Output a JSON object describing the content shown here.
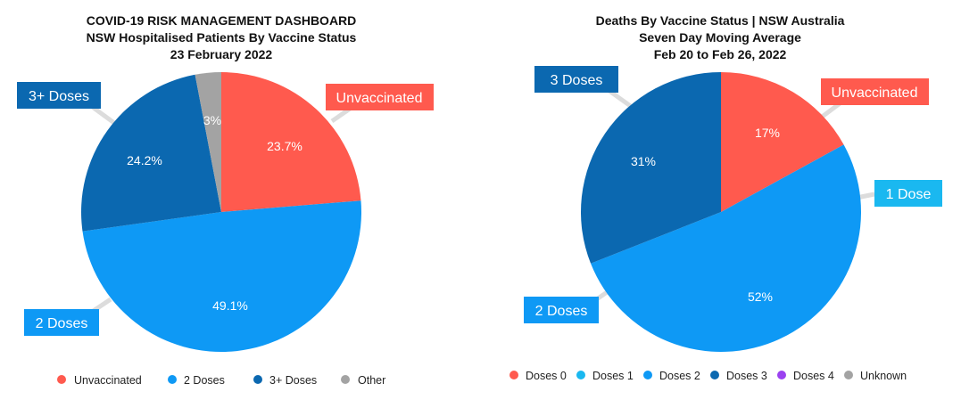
{
  "chart_data": [
    {
      "type": "pie",
      "title": [
        "COVID-19 RISK MANAGEMENT DASHBOARD",
        "NSW Hospitalised Patients By Vaccine Status",
        "23 February 2022"
      ],
      "slices": [
        {
          "name": "Unvaccinated",
          "value": 23.7,
          "label": "23.7%",
          "color": "#ff5a4e"
        },
        {
          "name": "2 Doses",
          "value": 49.1,
          "label": "49.1%",
          "color": "#0e99f5"
        },
        {
          "name": "3+ Doses",
          "value": 24.2,
          "label": "24.2%",
          "color": "#0b68b0"
        },
        {
          "name": "Other",
          "value": 3.0,
          "label": "3%",
          "color": "#a3a3a3"
        }
      ],
      "callouts": [
        {
          "text": "Unvaccinated",
          "color": "#ff5a4e"
        },
        {
          "text": "2 Doses",
          "color": "#0e99f5"
        },
        {
          "text": "3+ Doses",
          "color": "#0b68b0"
        }
      ],
      "legend": [
        {
          "name": "Unvaccinated",
          "color": "#ff5a4e"
        },
        {
          "name": "2 Doses",
          "color": "#0e99f5"
        },
        {
          "name": "3+ Doses",
          "color": "#0b68b0"
        },
        {
          "name": "Other",
          "color": "#a3a3a3"
        }
      ],
      "legend_position": "bottom"
    },
    {
      "type": "pie",
      "title": [
        "Deaths By Vaccine Status | NSW Australia",
        "Seven Day Moving Average",
        "Feb 20 to Feb 26, 2022"
      ],
      "slices": [
        {
          "name": "Doses 0",
          "value": 17,
          "label": "17%",
          "color": "#ff5a4e"
        },
        {
          "name": "Doses 2",
          "value": 52,
          "label": "52%",
          "color": "#0e99f5"
        },
        {
          "name": "Doses 3",
          "value": 31,
          "label": "31%",
          "color": "#0b68b0"
        }
      ],
      "callouts": [
        {
          "text": "Unvaccinated",
          "color": "#ff5a4e"
        },
        {
          "text": "1 Dose",
          "color": "#1ab8f0"
        },
        {
          "text": "2 Doses",
          "color": "#0e99f5"
        },
        {
          "text": "3 Doses",
          "color": "#0b68b0"
        }
      ],
      "legend": [
        {
          "name": "Doses 0",
          "color": "#ff5a4e"
        },
        {
          "name": "Doses 1",
          "color": "#1ab8f0"
        },
        {
          "name": "Doses 2",
          "color": "#0e99f5"
        },
        {
          "name": "Doses 3",
          "color": "#0b68b0"
        },
        {
          "name": "Doses 4",
          "color": "#9b42f0"
        },
        {
          "name": "Unknown",
          "color": "#a3a3a3"
        }
      ],
      "legend_position": "bottom"
    }
  ]
}
